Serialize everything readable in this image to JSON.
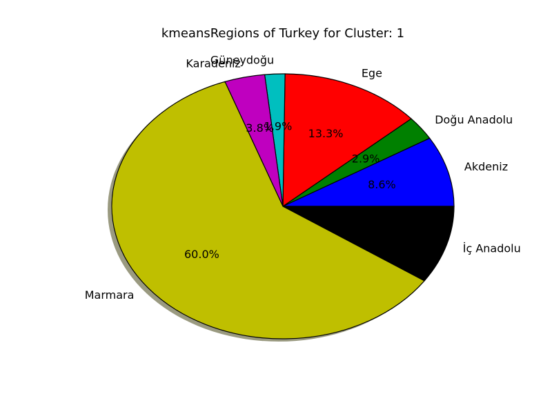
{
  "chart_data": {
    "type": "pie",
    "title": "kmeansRegions of Turkey for Cluster: 1",
    "start_angle_deg": 0,
    "direction": "counterclockwise",
    "shadow": true,
    "slices": [
      {
        "label": "Akdeniz",
        "value": 8.6,
        "pct_label": "8.6%",
        "color": "#0000ff"
      },
      {
        "label": "Doğu Anadolu",
        "value": 2.9,
        "pct_label": "2.9%",
        "color": "#008000"
      },
      {
        "label": "Ege",
        "value": 13.3,
        "pct_label": "13.3%",
        "color": "#ff0000"
      },
      {
        "label": "Güneydoğu",
        "value": 1.9,
        "pct_label": "1.9%",
        "color": "#00bfbf"
      },
      {
        "label": "Karadeniz",
        "value": 3.8,
        "pct_label": "3.8%",
        "color": "#bf00bf"
      },
      {
        "label": "Marmara",
        "value": 60.0,
        "pct_label": "60.0%",
        "color": "#bfbf00"
      },
      {
        "label": "İç Anadolu",
        "value": 9.5,
        "pct_label": "",
        "color": "#000000"
      }
    ]
  }
}
